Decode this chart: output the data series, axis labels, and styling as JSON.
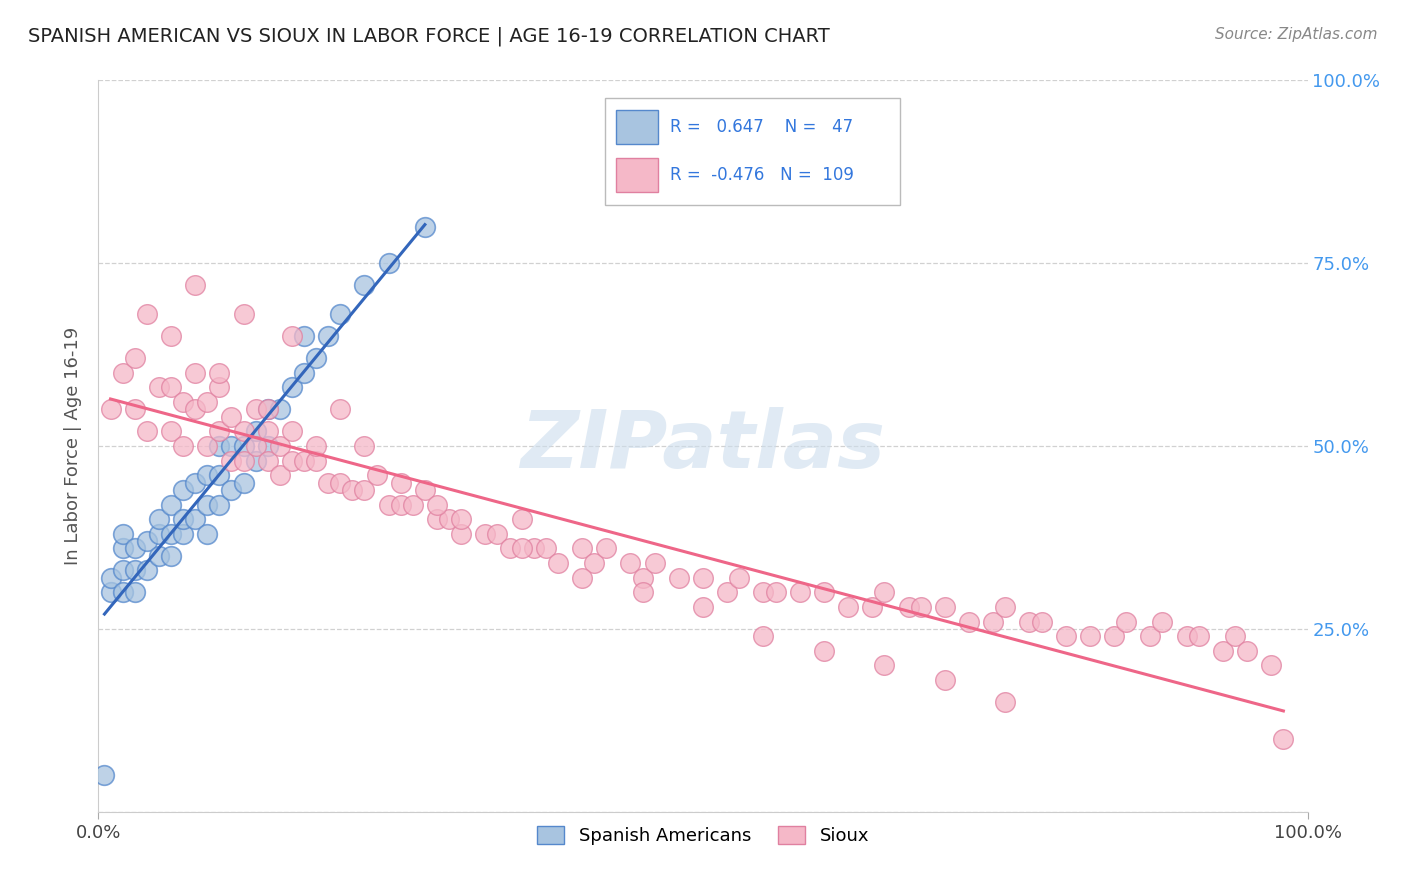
{
  "title": "SPANISH AMERICAN VS SIOUX IN LABOR FORCE | AGE 16-19 CORRELATION CHART",
  "source": "Source: ZipAtlas.com",
  "ylabel": "In Labor Force | Age 16-19",
  "xlim": [
    0.0,
    1.0
  ],
  "ylim": [
    0.0,
    1.0
  ],
  "legend_r_blue": "0.647",
  "legend_n_blue": "47",
  "legend_r_pink": "-0.476",
  "legend_n_pink": "109",
  "blue_color": "#a8c4e0",
  "blue_edge_color": "#5588cc",
  "pink_color": "#f5b8c8",
  "pink_edge_color": "#e080a0",
  "blue_line_color": "#3366bb",
  "pink_line_color": "#ee6688",
  "watermark_color": "#ccdded",
  "blue_scatter_x": [
    0.005,
    0.01,
    0.01,
    0.02,
    0.02,
    0.02,
    0.02,
    0.03,
    0.03,
    0.03,
    0.04,
    0.04,
    0.05,
    0.05,
    0.05,
    0.06,
    0.06,
    0.06,
    0.07,
    0.07,
    0.07,
    0.08,
    0.08,
    0.09,
    0.09,
    0.09,
    0.1,
    0.1,
    0.1,
    0.11,
    0.11,
    0.12,
    0.12,
    0.13,
    0.13,
    0.14,
    0.14,
    0.15,
    0.16,
    0.17,
    0.17,
    0.18,
    0.19,
    0.2,
    0.22,
    0.24,
    0.27
  ],
  "blue_scatter_y": [
    0.05,
    0.3,
    0.32,
    0.3,
    0.33,
    0.36,
    0.38,
    0.3,
    0.33,
    0.36,
    0.33,
    0.37,
    0.35,
    0.38,
    0.4,
    0.35,
    0.38,
    0.42,
    0.38,
    0.4,
    0.44,
    0.4,
    0.45,
    0.38,
    0.42,
    0.46,
    0.42,
    0.46,
    0.5,
    0.44,
    0.5,
    0.45,
    0.5,
    0.48,
    0.52,
    0.5,
    0.55,
    0.55,
    0.58,
    0.6,
    0.65,
    0.62,
    0.65,
    0.68,
    0.72,
    0.75,
    0.8
  ],
  "pink_scatter_x": [
    0.01,
    0.02,
    0.03,
    0.03,
    0.04,
    0.05,
    0.06,
    0.06,
    0.07,
    0.07,
    0.08,
    0.08,
    0.09,
    0.09,
    0.1,
    0.1,
    0.11,
    0.11,
    0.12,
    0.12,
    0.13,
    0.13,
    0.14,
    0.14,
    0.15,
    0.15,
    0.16,
    0.16,
    0.17,
    0.18,
    0.19,
    0.2,
    0.21,
    0.22,
    0.23,
    0.24,
    0.25,
    0.26,
    0.27,
    0.28,
    0.29,
    0.3,
    0.32,
    0.33,
    0.34,
    0.35,
    0.36,
    0.37,
    0.38,
    0.4,
    0.41,
    0.42,
    0.44,
    0.45,
    0.46,
    0.48,
    0.5,
    0.52,
    0.53,
    0.55,
    0.56,
    0.58,
    0.6,
    0.62,
    0.64,
    0.65,
    0.67,
    0.68,
    0.7,
    0.72,
    0.74,
    0.75,
    0.77,
    0.78,
    0.8,
    0.82,
    0.84,
    0.85,
    0.87,
    0.88,
    0.9,
    0.91,
    0.93,
    0.94,
    0.95,
    0.97,
    0.98,
    0.04,
    0.06,
    0.08,
    0.1,
    0.12,
    0.14,
    0.16,
    0.18,
    0.2,
    0.22,
    0.25,
    0.28,
    0.3,
    0.35,
    0.4,
    0.45,
    0.5,
    0.55,
    0.6,
    0.65,
    0.7,
    0.75
  ],
  "pink_scatter_y": [
    0.55,
    0.6,
    0.55,
    0.62,
    0.52,
    0.58,
    0.52,
    0.58,
    0.5,
    0.56,
    0.55,
    0.6,
    0.5,
    0.56,
    0.52,
    0.58,
    0.48,
    0.54,
    0.48,
    0.52,
    0.5,
    0.55,
    0.48,
    0.52,
    0.46,
    0.5,
    0.48,
    0.52,
    0.48,
    0.48,
    0.45,
    0.45,
    0.44,
    0.44,
    0.46,
    0.42,
    0.42,
    0.42,
    0.44,
    0.4,
    0.4,
    0.38,
    0.38,
    0.38,
    0.36,
    0.4,
    0.36,
    0.36,
    0.34,
    0.36,
    0.34,
    0.36,
    0.34,
    0.32,
    0.34,
    0.32,
    0.32,
    0.3,
    0.32,
    0.3,
    0.3,
    0.3,
    0.3,
    0.28,
    0.28,
    0.3,
    0.28,
    0.28,
    0.28,
    0.26,
    0.26,
    0.28,
    0.26,
    0.26,
    0.24,
    0.24,
    0.24,
    0.26,
    0.24,
    0.26,
    0.24,
    0.24,
    0.22,
    0.24,
    0.22,
    0.2,
    0.1,
    0.68,
    0.65,
    0.72,
    0.6,
    0.68,
    0.55,
    0.65,
    0.5,
    0.55,
    0.5,
    0.45,
    0.42,
    0.4,
    0.36,
    0.32,
    0.3,
    0.28,
    0.24,
    0.22,
    0.2,
    0.18,
    0.15
  ]
}
